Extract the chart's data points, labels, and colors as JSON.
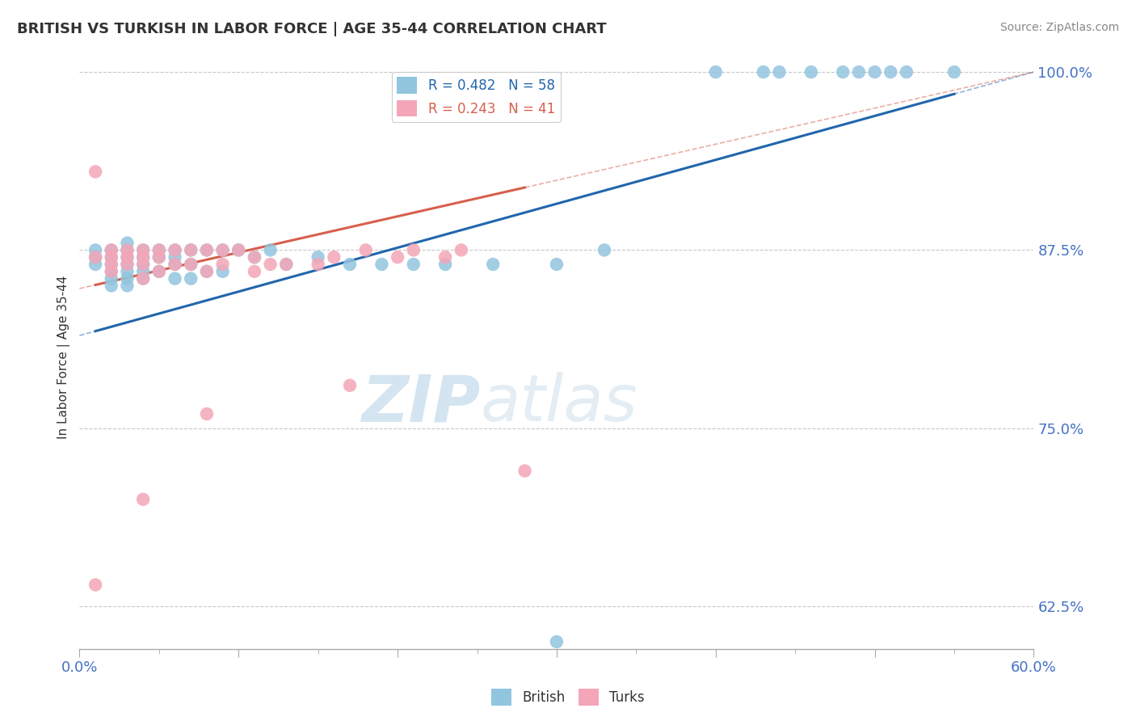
{
  "title": "BRITISH VS TURKISH IN LABOR FORCE | AGE 35-44 CORRELATION CHART",
  "source": "Source: ZipAtlas.com",
  "ylabel": "In Labor Force | Age 35-44",
  "xlim": [
    0.0,
    0.6
  ],
  "ylim": [
    0.595,
    1.005
  ],
  "yticks": [
    0.625,
    0.75,
    0.875,
    1.0
  ],
  "ytick_labels": [
    "62.5%",
    "75.0%",
    "87.5%",
    "100.0%"
  ],
  "xticks": [
    0.0,
    0.1,
    0.2,
    0.3,
    0.4,
    0.5,
    0.6
  ],
  "british_R": 0.482,
  "british_N": 58,
  "turks_R": 0.243,
  "turks_N": 41,
  "british_color": "#92c5de",
  "turks_color": "#f4a6b8",
  "british_line_color": "#2166ac",
  "turks_line_color": "#d6604d",
  "background_color": "#ffffff",
  "grid_color": "#c8c8c8",
  "title_color": "#333333",
  "tick_label_color": "#4472c4",
  "british_x": [
    0.01,
    0.01,
    0.01,
    0.02,
    0.02,
    0.02,
    0.02,
    0.02,
    0.02,
    0.03,
    0.03,
    0.03,
    0.03,
    0.03,
    0.03,
    0.03,
    0.04,
    0.04,
    0.04,
    0.04,
    0.04,
    0.05,
    0.05,
    0.05,
    0.06,
    0.06,
    0.06,
    0.06,
    0.07,
    0.07,
    0.07,
    0.08,
    0.08,
    0.09,
    0.09,
    0.1,
    0.11,
    0.12,
    0.13,
    0.15,
    0.17,
    0.19,
    0.21,
    0.23,
    0.26,
    0.3,
    0.33,
    0.4,
    0.43,
    0.44,
    0.46,
    0.48,
    0.49,
    0.5,
    0.51,
    0.52,
    0.55,
    0.3
  ],
  "british_y": [
    0.875,
    0.87,
    0.865,
    0.875,
    0.87,
    0.865,
    0.86,
    0.855,
    0.85,
    0.88,
    0.875,
    0.87,
    0.865,
    0.86,
    0.855,
    0.85,
    0.875,
    0.87,
    0.865,
    0.86,
    0.855,
    0.875,
    0.87,
    0.86,
    0.875,
    0.87,
    0.865,
    0.855,
    0.875,
    0.865,
    0.855,
    0.875,
    0.86,
    0.875,
    0.86,
    0.875,
    0.87,
    0.875,
    0.865,
    0.87,
    0.865,
    0.865,
    0.865,
    0.865,
    0.865,
    0.865,
    0.875,
    1.0,
    1.0,
    1.0,
    1.0,
    1.0,
    1.0,
    1.0,
    1.0,
    1.0,
    1.0,
    0.6
  ],
  "turks_x": [
    0.01,
    0.01,
    0.02,
    0.02,
    0.02,
    0.02,
    0.03,
    0.03,
    0.03,
    0.04,
    0.04,
    0.04,
    0.04,
    0.05,
    0.05,
    0.05,
    0.06,
    0.06,
    0.07,
    0.07,
    0.08,
    0.08,
    0.09,
    0.09,
    0.1,
    0.11,
    0.11,
    0.12,
    0.13,
    0.15,
    0.16,
    0.18,
    0.2,
    0.21,
    0.23,
    0.24,
    0.17,
    0.01,
    0.04,
    0.08,
    0.28
  ],
  "turks_y": [
    0.93,
    0.87,
    0.875,
    0.87,
    0.865,
    0.86,
    0.875,
    0.87,
    0.865,
    0.875,
    0.87,
    0.865,
    0.855,
    0.875,
    0.87,
    0.86,
    0.875,
    0.865,
    0.875,
    0.865,
    0.875,
    0.86,
    0.875,
    0.865,
    0.875,
    0.87,
    0.86,
    0.865,
    0.865,
    0.865,
    0.87,
    0.875,
    0.87,
    0.875,
    0.87,
    0.875,
    0.78,
    0.64,
    0.7,
    0.76,
    0.72
  ],
  "british_trendline_x0": 0.0,
  "british_trendline_y0": 0.815,
  "british_trendline_x1": 0.6,
  "british_trendline_y1": 1.0,
  "turks_trendline_x0": 0.0,
  "turks_trendline_y0": 0.848,
  "turks_trendline_x1": 0.6,
  "turks_trendline_y1": 1.0
}
